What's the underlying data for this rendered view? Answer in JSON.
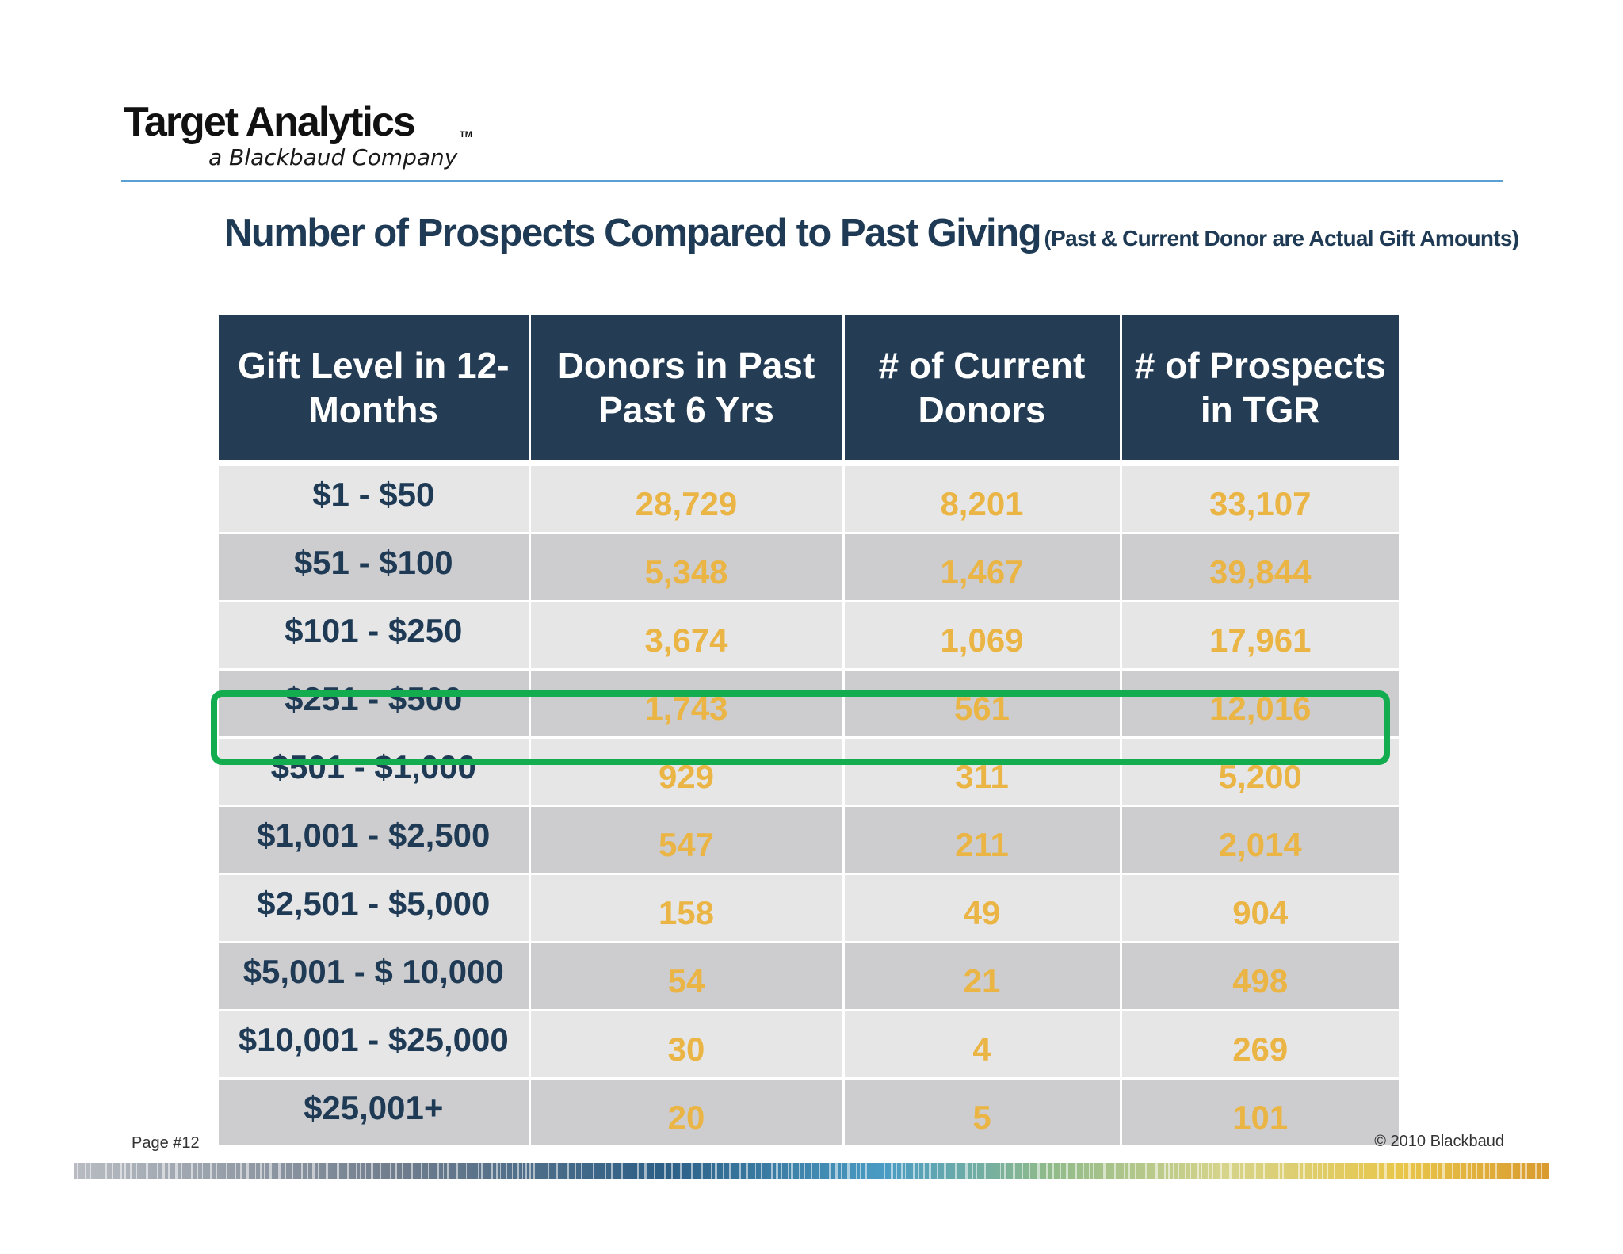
{
  "logo": {
    "name": "Target Analytics",
    "trademark": "TM",
    "tagline": "a Blackbaud Company"
  },
  "title": {
    "main": "Number of Prospects Compared to Past Giving",
    "sub": "(Past & Current Donor are Actual Gift Amounts)"
  },
  "table": {
    "headers": [
      "Gift Level in 12-Months",
      "Donors in Past Past 6 Yrs",
      "# of Current Donors",
      "# of Prospects in TGR"
    ],
    "rows": [
      {
        "level": "$1 - $50",
        "past_donors": "28,729",
        "current_donors": "8,201",
        "prospects": "33,107"
      },
      {
        "level": "$51 - $100",
        "past_donors": "5,348",
        "current_donors": "1,467",
        "prospects": "39,844"
      },
      {
        "level": "$101 - $250",
        "past_donors": "3,674",
        "current_donors": "1,069",
        "prospects": "17,961"
      },
      {
        "level": "$251 - $500",
        "past_donors": "1,743",
        "current_donors": "561",
        "prospects": "12,016"
      },
      {
        "level": "$501 - $1,000",
        "past_donors": "929",
        "current_donors": "311",
        "prospects": "5,200"
      },
      {
        "level": "$1,001 - $2,500",
        "past_donors": "547",
        "current_donors": "211",
        "prospects": "2,014"
      },
      {
        "level": "$2,501 - $5,000",
        "past_donors": "158",
        "current_donors": "49",
        "prospects": "904"
      },
      {
        "level": "$5,001 - $ 10,000",
        "past_donors": "54",
        "current_donors": "21",
        "prospects": "498"
      },
      {
        "level": "$10,001 - $25,000",
        "past_donors": "30",
        "current_donors": "4",
        "prospects": "269"
      },
      {
        "level": "$25,001+",
        "past_donors": "20",
        "current_donors": "5",
        "prospects": "101"
      }
    ],
    "highlighted_row": 4
  },
  "footer": {
    "page": "Page #12",
    "copyright": "© 2010 Blackbaud"
  },
  "colors": {
    "header_bg": "#243d55",
    "title_text": "#1f3a55",
    "number_text": "#eab544",
    "row_light": "#e6e6e7",
    "row_dark": "#cdcdcf",
    "highlight_border": "#13ad4f",
    "rule": "#5aa0d2"
  }
}
